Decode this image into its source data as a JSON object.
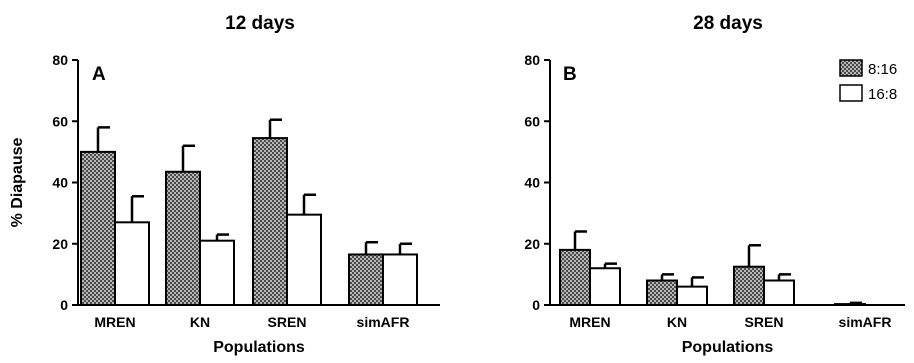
{
  "chart_data": [
    {
      "type": "bar",
      "title": "12 days",
      "panel_label": "A",
      "xlabel": "Populations",
      "ylabel": "% Diapause",
      "ylim": [
        0,
        80
      ],
      "yticks": [
        "0",
        "20",
        "40",
        "60",
        "80"
      ],
      "categories": [
        "MREN",
        "KN",
        "SREN",
        "simAFR"
      ],
      "series": [
        {
          "name": "8:16",
          "values": [
            50,
            43.5,
            54.5,
            16.5
          ],
          "errors": [
            8,
            8.5,
            6,
            4
          ],
          "color": "#8c8c8c",
          "pattern": "checker"
        },
        {
          "name": "16:8",
          "values": [
            27,
            21,
            29.5,
            16.5
          ],
          "errors": [
            8.5,
            2,
            6.5,
            3.5
          ],
          "color": "#ffffff",
          "pattern": "none"
        }
      ],
      "legend": "none"
    },
    {
      "type": "bar",
      "title": "28 days",
      "panel_label": "B",
      "xlabel": "Populations",
      "ylabel": "",
      "ylim": [
        0,
        80
      ],
      "yticks": [
        "0",
        "20",
        "40",
        "60",
        "80"
      ],
      "categories": [
        "MREN",
        "KN",
        "SREN",
        "simAFR"
      ],
      "series": [
        {
          "name": "8:16",
          "values": [
            18,
            8,
            12.5,
            0.3
          ],
          "errors": [
            6,
            2,
            7,
            0.4
          ],
          "color": "#8c8c8c",
          "pattern": "checker"
        },
        {
          "name": "16:8",
          "values": [
            12,
            6,
            8,
            0
          ],
          "errors": [
            1.5,
            3,
            2,
            0
          ],
          "color": "#ffffff",
          "pattern": "none"
        }
      ],
      "legend": "top-right"
    }
  ]
}
